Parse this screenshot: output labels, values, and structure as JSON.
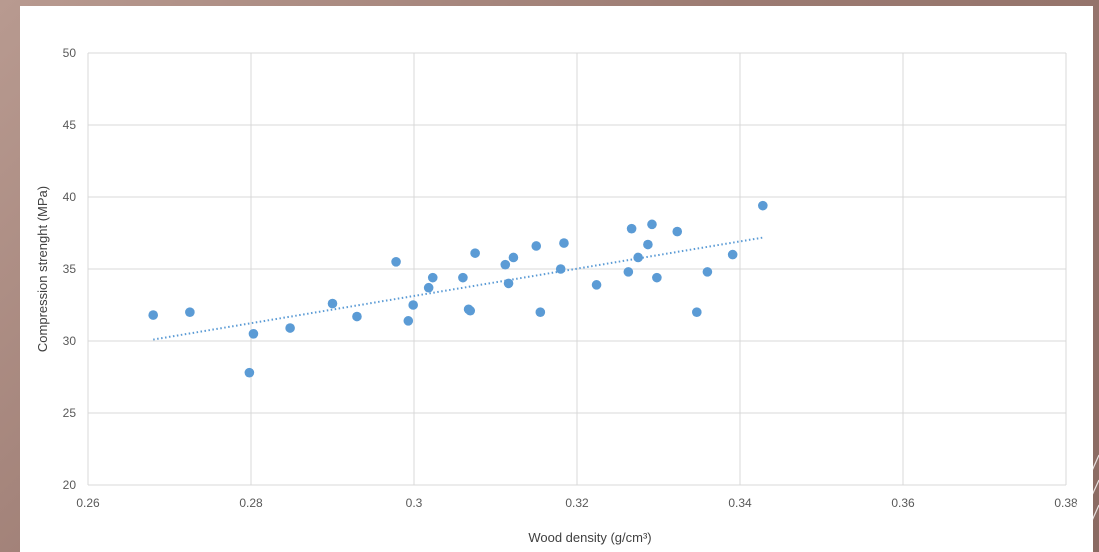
{
  "chart_data": {
    "type": "scatter",
    "title": "",
    "xlabel": "Wood density (g/cm³)",
    "ylabel": "Compression strenght (MPa)",
    "xlim": [
      0.26,
      0.38
    ],
    "ylim": [
      20,
      50
    ],
    "x_ticks": [
      "0.26",
      "0.28",
      "0.3",
      "0.32",
      "0.34",
      "0.36",
      "0.38"
    ],
    "y_ticks": [
      "20",
      "25",
      "30",
      "35",
      "40",
      "45",
      "50"
    ],
    "x_tick_values": [
      0.26,
      0.28,
      0.3,
      0.32,
      0.34,
      0.36,
      0.38
    ],
    "y_tick_values": [
      20,
      25,
      30,
      35,
      40,
      45,
      50
    ],
    "grid": true,
    "legend": "none",
    "series": [
      {
        "color": "#5b9bd5",
        "points": [
          [
            0.268,
            31.8
          ],
          [
            0.2725,
            32.0
          ],
          [
            0.2798,
            27.8
          ],
          [
            0.2803,
            30.5
          ],
          [
            0.2848,
            30.9
          ],
          [
            0.29,
            32.6
          ],
          [
            0.293,
            31.7
          ],
          [
            0.2978,
            35.5
          ],
          [
            0.2993,
            31.4
          ],
          [
            0.2999,
            32.5
          ],
          [
            0.3018,
            33.7
          ],
          [
            0.3023,
            34.4
          ],
          [
            0.306,
            34.4
          ],
          [
            0.3067,
            32.2
          ],
          [
            0.3069,
            32.1
          ],
          [
            0.3075,
            36.1
          ],
          [
            0.3112,
            35.3
          ],
          [
            0.3116,
            34.0
          ],
          [
            0.3122,
            35.8
          ],
          [
            0.315,
            36.6
          ],
          [
            0.3155,
            32.0
          ],
          [
            0.318,
            35.0
          ],
          [
            0.3184,
            36.8
          ],
          [
            0.3224,
            33.9
          ],
          [
            0.3263,
            34.8
          ],
          [
            0.3267,
            37.8
          ],
          [
            0.3275,
            35.8
          ],
          [
            0.3287,
            36.7
          ],
          [
            0.3292,
            38.1
          ],
          [
            0.3298,
            34.4
          ],
          [
            0.3323,
            37.6
          ],
          [
            0.3347,
            32.0
          ],
          [
            0.336,
            34.8
          ],
          [
            0.3391,
            36.0
          ],
          [
            0.3428,
            39.4
          ]
        ]
      }
    ],
    "trendline": {
      "type": "linear",
      "x": [
        0.268,
        0.343
      ],
      "y": [
        30.1,
        37.2
      ],
      "style": "dotted",
      "color": "#5b9bd5"
    }
  }
}
